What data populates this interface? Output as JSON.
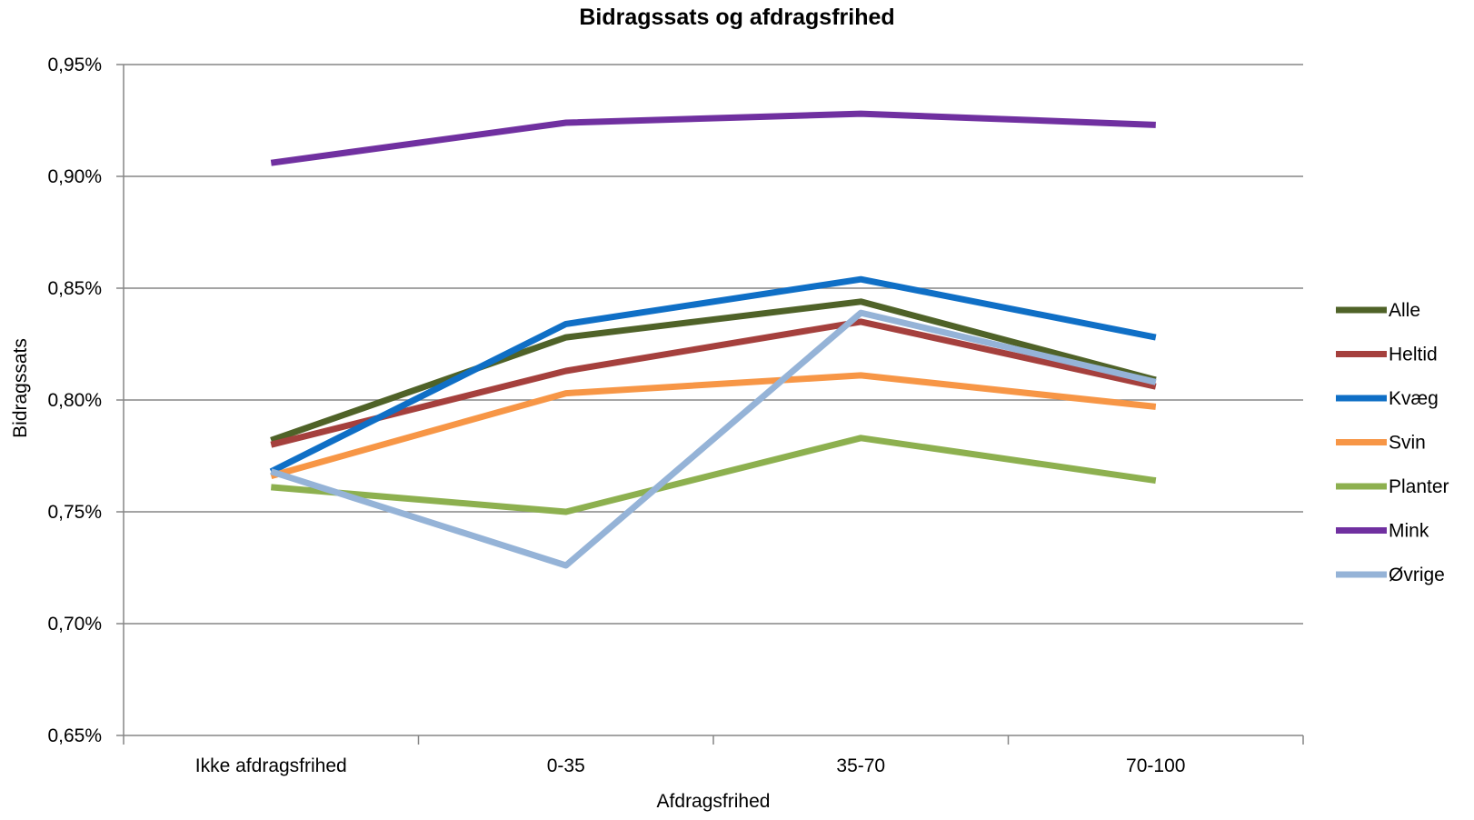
{
  "chart_data": {
    "type": "line",
    "title": "Bidragssats og afdragsfrihed",
    "xlabel": "Afdragsfrihed",
    "ylabel": "Bidragssats",
    "categories": [
      "Ikke afdragsfrihed",
      "0-35",
      "35-70",
      "70-100"
    ],
    "ylim": [
      0.65,
      0.95
    ],
    "yticks": [
      "0,65%",
      "0,70%",
      "0,75%",
      "0,80%",
      "0,85%",
      "0,90%",
      "0,95%"
    ],
    "ytick_values": [
      0.65,
      0.7,
      0.75,
      0.8,
      0.85,
      0.9,
      0.95
    ],
    "grid": true,
    "legend_position": "right",
    "series": [
      {
        "name": "Alle",
        "color": "#4f6228",
        "values": [
          0.782,
          0.828,
          0.844,
          0.809
        ]
      },
      {
        "name": "Heltid",
        "color": "#a5403d",
        "values": [
          0.78,
          0.813,
          0.835,
          0.806
        ]
      },
      {
        "name": "Kvæg",
        "color": "#0f6fc6",
        "values": [
          0.768,
          0.834,
          0.854,
          0.828
        ]
      },
      {
        "name": "Svin",
        "color": "#f79646",
        "values": [
          0.766,
          0.803,
          0.811,
          0.797
        ]
      },
      {
        "name": "Planter",
        "color": "#8db04f",
        "values": [
          0.761,
          0.75,
          0.783,
          0.764
        ]
      },
      {
        "name": "Mink",
        "color": "#7030a0",
        "values": [
          0.906,
          0.924,
          0.928,
          0.923
        ]
      },
      {
        "name": "Øvrige",
        "color": "#95b3d7",
        "values": [
          0.768,
          0.726,
          0.839,
          0.808
        ]
      }
    ]
  }
}
